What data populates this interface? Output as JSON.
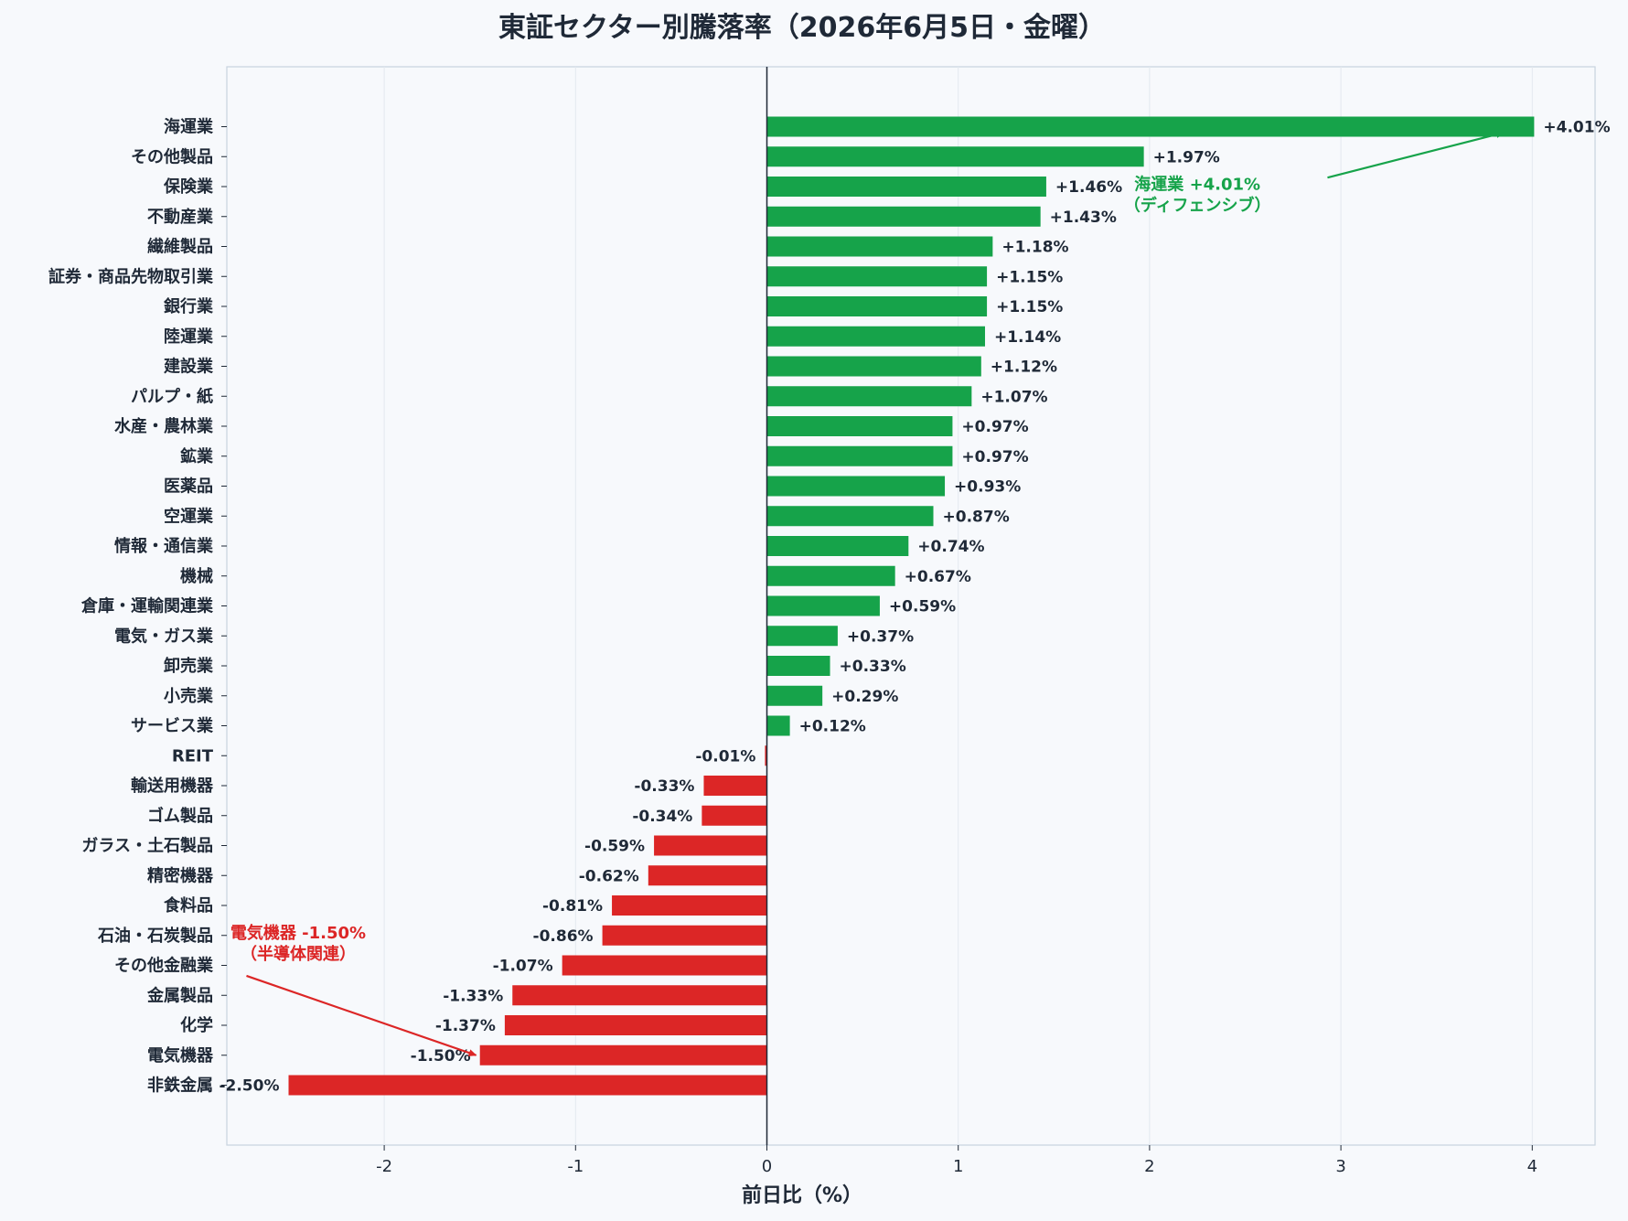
{
  "chart_data": {
    "type": "bar",
    "orientation": "horizontal",
    "title": "東証セクター別騰落率（2026年6月5日・金曜）",
    "xlabel": "前日比（%）",
    "ylabel": "",
    "xlim": [
      -2.85,
      4.3
    ],
    "xticks": [
      -2,
      -1,
      0,
      1,
      2,
      3,
      4
    ],
    "grid": "vertical",
    "categories": [
      "海運業",
      "その他製品",
      "保険業",
      "不動産業",
      "繊維製品",
      "証券・商品先物取引業",
      "銀行業",
      "陸運業",
      "建設業",
      "パルプ・紙",
      "水産・農林業",
      "鉱業",
      "医薬品",
      "空運業",
      "情報・通信業",
      "機械",
      "倉庫・運輸関連業",
      "電気・ガス業",
      "卸売業",
      "小売業",
      "サービス業",
      "REIT",
      "輸送用機器",
      "ゴム製品",
      "ガラス・土石製品",
      "精密機器",
      "食料品",
      "石油・石炭製品",
      "その他金融業",
      "金属製品",
      "化学",
      "電気機器",
      "非鉄金属"
    ],
    "values": [
      4.01,
      1.97,
      1.46,
      1.43,
      1.18,
      1.15,
      1.15,
      1.14,
      1.12,
      1.07,
      0.97,
      0.97,
      0.93,
      0.87,
      0.74,
      0.67,
      0.59,
      0.37,
      0.33,
      0.29,
      0.12,
      -0.01,
      -0.33,
      -0.34,
      -0.59,
      -0.62,
      -0.81,
      -0.86,
      -1.07,
      -1.33,
      -1.37,
      -1.5,
      -2.5
    ],
    "value_labels": [
      "+4.01%",
      "+1.97%",
      "+1.46%",
      "+1.43%",
      "+1.18%",
      "+1.15%",
      "+1.15%",
      "+1.14%",
      "+1.12%",
      "+1.07%",
      "+0.97%",
      "+0.97%",
      "+0.93%",
      "+0.87%",
      "+0.74%",
      "+0.67%",
      "+0.59%",
      "+0.37%",
      "+0.33%",
      "+0.29%",
      "+0.12%",
      "-0.01%",
      "-0.33%",
      "-0.34%",
      "-0.59%",
      "-0.62%",
      "-0.81%",
      "-0.86%",
      "-1.07%",
      "-1.33%",
      "-1.37%",
      "-1.50%",
      "-2.50%"
    ],
    "colors": {
      "positive": "#16a34a",
      "negative": "#dc2626",
      "background": "#f7f9fc",
      "axis": "#1f2937",
      "grid": "#e3e8ef",
      "frame": "#c8d3de"
    },
    "annotations": [
      {
        "target": "海運業",
        "lines": [
          "海運業 +4.01%",
          "（ディフェンシブ）"
        ],
        "color": "#16a34a",
        "text_x": 2.25,
        "text_row": 2.1,
        "arrow_from_x": 2.93,
        "arrow_from_row": 1.7,
        "arrow_to_x": 3.85,
        "arrow_to_row": 0.2
      },
      {
        "target": "電気機器",
        "lines": [
          "電気機器 -1.50%",
          "（半導体関連）"
        ],
        "color": "#dc2626",
        "text_x": -2.45,
        "text_row": 27.1,
        "arrow_from_x": -2.72,
        "arrow_from_row": 28.35,
        "arrow_to_x": -1.52,
        "arrow_to_row": 31.0
      }
    ]
  }
}
